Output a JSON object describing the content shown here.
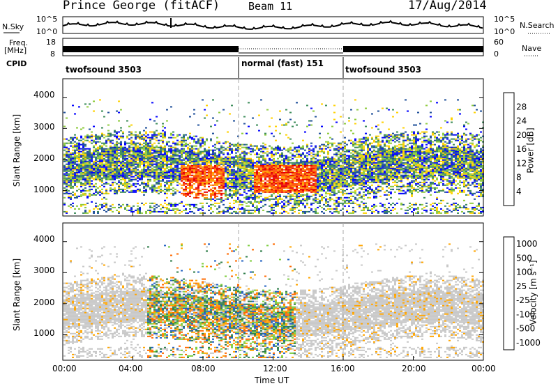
{
  "header": {
    "title": "Prince George (fitACF)",
    "beam": "Beam 11",
    "date": "17/Aug/2014"
  },
  "noise_panel": {
    "left_label": "N.Sky",
    "left_ticks": [
      "10^5",
      "10^0"
    ],
    "right_ticks": [
      "10^5",
      "10^0"
    ],
    "right_label": "N.Search"
  },
  "freq_panel": {
    "left_label": "Freq.",
    "left_unit": "[MHz]",
    "left_ticks": [
      "18",
      "8"
    ],
    "right_ticks": [
      "60",
      "0"
    ],
    "right_label": "Nave"
  },
  "cpid": {
    "label": "CPID",
    "segments": [
      "twofsound 3503",
      "normal (fast) 151",
      "twofsound 3503"
    ]
  },
  "chart_data": [
    {
      "type": "heatmap",
      "name": "power",
      "ylabel": "Slant Range [km]",
      "yticks": [
        "4000",
        "3000",
        "2000",
        "1000"
      ],
      "ylim": [
        180,
        4600
      ],
      "colorbar_label": "Power [dB]",
      "colorbar_ticks": [
        "28",
        "24",
        "20",
        "16",
        "12",
        "8",
        "4"
      ],
      "colorbar_colors": [
        "#e60000",
        "#ff4d00",
        "#ff9900",
        "#ffd200",
        "#8ecb3c",
        "#3c8c5a",
        "#1f4f9a",
        "#0000ff"
      ]
    },
    {
      "type": "heatmap",
      "name": "velocity",
      "ylabel": "Slant Range [km]",
      "yticks": [
        "4000",
        "3000",
        "2000",
        "1000"
      ],
      "ylim": [
        180,
        4600
      ],
      "colorbar_label": "Velocity [m s⁻¹]",
      "colorbar_ticks": [
        "1000",
        "500",
        "100",
        "25",
        "-25",
        "-100",
        "-500",
        "-1000"
      ],
      "colorbar_colors": [
        "#0000ff",
        "#2060c0",
        "#2e7d4a",
        "#7ccd3c",
        "#c8c8c8",
        "#ffa500",
        "#ff6a00",
        "#e00000"
      ]
    }
  ],
  "x_axis": {
    "ticks": [
      "00:00",
      "04:00",
      "08:00",
      "12:00",
      "16:00",
      "20:00",
      "00:00"
    ],
    "label": "Time UT"
  }
}
